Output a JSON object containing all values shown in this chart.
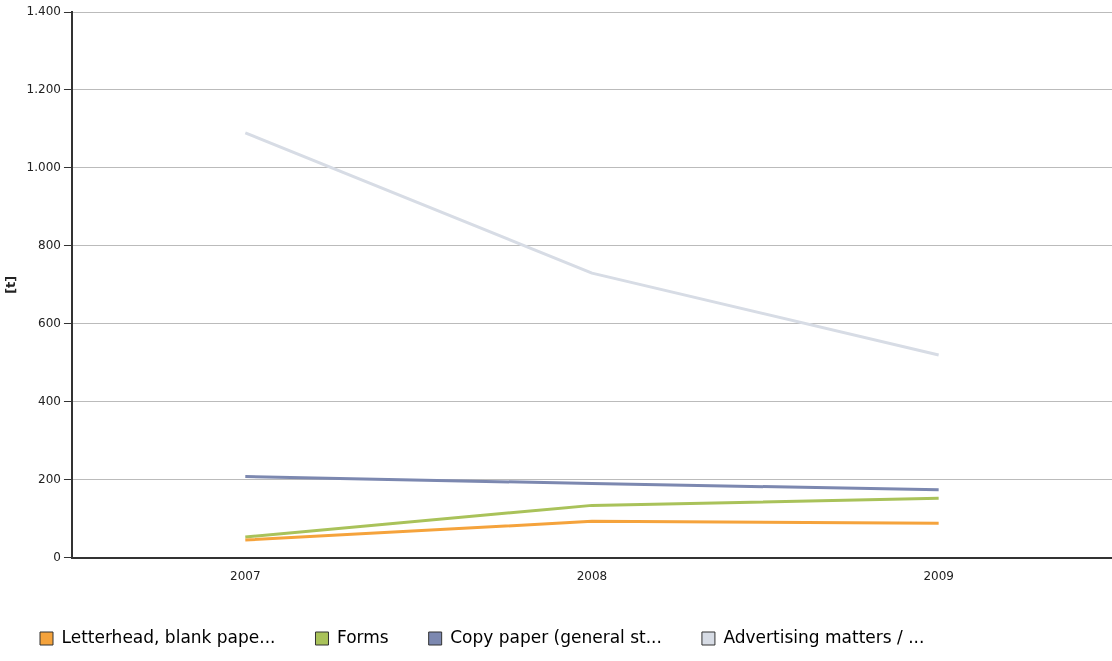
{
  "chart_data": {
    "type": "line",
    "ylabel": "[t]",
    "categories": [
      "2007",
      "2008",
      "2009"
    ],
    "series": [
      {
        "name": "Letterhead, blank pape...",
        "color": "#f5a33c",
        "values": [
          45,
          93,
          88
        ]
      },
      {
        "name": "Forms",
        "color": "#a9c25a",
        "values": [
          53,
          134,
          152
        ]
      },
      {
        "name": "Copy paper (general st...",
        "color": "#7c88b0",
        "values": [
          208,
          190,
          174
        ]
      },
      {
        "name": "Advertising matters / ...",
        "color": "#d7dce5",
        "values": [
          1090,
          730,
          520
        ]
      }
    ],
    "ylim": [
      0,
      1400
    ],
    "yticks": [
      0,
      200,
      400,
      600,
      800,
      {
        "value": 1000,
        "label": "1.000"
      },
      {
        "value": 1200,
        "label": "1.200"
      },
      {
        "value": 1400,
        "label": "1.400"
      }
    ],
    "grid": "y",
    "legend": "bottom left",
    "marker": "none"
  }
}
